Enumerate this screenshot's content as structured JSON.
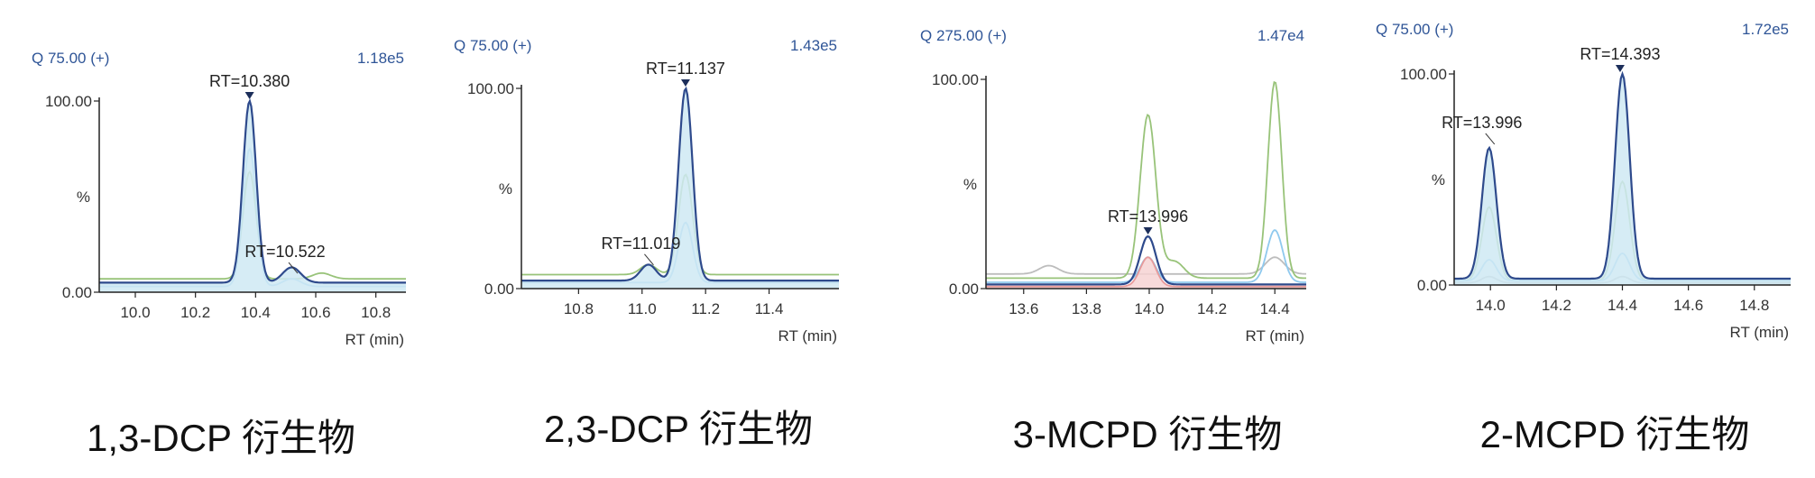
{
  "chart_data": [
    {
      "type": "line",
      "title": "1,3-DCP 衍生物",
      "channel": "Q 75.00 (+)",
      "scale": "1.18e5",
      "ylabel": "%",
      "xlabel": "RT (min)",
      "y_ticks": [
        "100.00",
        "0.00"
      ],
      "x_ticks": [
        "10.0",
        "10.2",
        "10.4",
        "10.6",
        "10.8"
      ],
      "xlim": [
        9.88,
        10.9
      ],
      "ylim": [
        0,
        100
      ],
      "annotations": [
        {
          "text": "RT=10.380",
          "x": 10.38,
          "y": 100,
          "marker": true
        },
        {
          "text": "RT=10.522",
          "x": 10.522,
          "y": 8
        }
      ],
      "series": [
        {
          "color": "#98c379",
          "baseline": 7,
          "peaks": [
            [
              10.38,
              56,
              0.022
            ],
            [
              10.62,
              3,
              0.03
            ]
          ]
        },
        {
          "color": "#8fc9ee",
          "baseline": 3,
          "peaks": [
            [
              10.38,
              72,
              0.022
            ],
            [
              10.52,
              4,
              0.03
            ]
          ]
        },
        {
          "color": "#2e4a8c",
          "fill": "#cfe9f3",
          "baseline": 5,
          "peaks": [
            [
              10.38,
              95,
              0.022
            ],
            [
              10.52,
              8,
              0.03
            ]
          ]
        }
      ]
    },
    {
      "type": "line",
      "title": "2,3-DCP 衍生物",
      "channel": "Q 75.00 (+)",
      "scale": "1.43e5",
      "ylabel": "%",
      "xlabel": "RT (min)",
      "y_ticks": [
        "100.00",
        "0.00"
      ],
      "x_ticks": [
        "10.8",
        "11.0",
        "11.2",
        "11.4"
      ],
      "xlim": [
        10.62,
        11.62
      ],
      "ylim": [
        0,
        100
      ],
      "annotations": [
        {
          "text": "RT=11.137",
          "x": 11.137,
          "y": 100,
          "marker": true
        },
        {
          "text": "RT=11.019",
          "x": 11.019,
          "y": 10
        }
      ],
      "series": [
        {
          "color": "#98c379",
          "baseline": 7,
          "peaks": [
            [
              11.137,
              50,
              0.022
            ],
            [
              11.02,
              5,
              0.025
            ]
          ]
        },
        {
          "color": "#8fc9ee",
          "baseline": 3,
          "peaks": [
            [
              11.137,
              30,
              0.022
            ]
          ]
        },
        {
          "color": "#2e4a8c",
          "fill": "#cfe9f3",
          "baseline": 4,
          "peaks": [
            [
              11.137,
              96,
              0.022
            ],
            [
              11.02,
              8,
              0.025
            ]
          ]
        }
      ]
    },
    {
      "type": "line",
      "title": "3-MCPD 衍生物",
      "channel": "Q 275.00 (+)",
      "scale": "1.47e4",
      "ylabel": "%",
      "xlabel": "RT (min)",
      "y_ticks": [
        "100.00",
        "0.00"
      ],
      "x_ticks": [
        "13.6",
        "13.8",
        "14.0",
        "14.2",
        "14.4"
      ],
      "xlim": [
        13.48,
        14.5
      ],
      "ylim": [
        0,
        100
      ],
      "annotations": [
        {
          "text": "RT=13.996",
          "x": 13.996,
          "y": 25,
          "marker": true
        }
      ],
      "series": [
        {
          "color": "#bdbdbd",
          "baseline": 7,
          "peaks": [
            [
              13.68,
              4,
              0.03
            ],
            [
              14.4,
              8,
              0.03
            ]
          ]
        },
        {
          "color": "#98c379",
          "baseline": 5,
          "peaks": [
            [
              13.996,
              78,
              0.025
            ],
            [
              14.08,
              8,
              0.03
            ],
            [
              14.4,
              94,
              0.022
            ]
          ]
        },
        {
          "color": "#8fc9ee",
          "baseline": 3,
          "peaks": [
            [
              13.996,
              12,
              0.025
            ],
            [
              14.4,
              25,
              0.025
            ]
          ]
        },
        {
          "color": "#e89a9a",
          "fill": "#f6d4d4",
          "baseline": 1,
          "peaks": [
            [
              13.996,
              14,
              0.025
            ]
          ]
        },
        {
          "color": "#2e4a8c",
          "baseline": 2,
          "peaks": [
            [
              13.996,
              23,
              0.025
            ]
          ]
        }
      ]
    },
    {
      "type": "line",
      "title": "2-MCPD  衍生物",
      "channel": "Q 75.00 (+)",
      "scale": "1.72e5",
      "ylabel": "%",
      "xlabel": "RT (min)",
      "y_ticks": [
        "100.00",
        "0.00"
      ],
      "x_ticks": [
        "14.0",
        "14.2",
        "14.4",
        "14.6",
        "14.8"
      ],
      "xlim": [
        13.89,
        14.91
      ],
      "ylim": [
        0,
        100
      ],
      "annotations": [
        {
          "text": "RT=14.393",
          "x": 14.393,
          "y": 100,
          "marker": true
        },
        {
          "text": "RT=13.996",
          "x": 13.996,
          "y": 65
        }
      ],
      "series": [
        {
          "color": "#bdbdbd",
          "baseline": 1,
          "peaks": [
            [
              13.996,
              3,
              0.022
            ],
            [
              14.4,
              3,
              0.022
            ]
          ]
        },
        {
          "color": "#98c379",
          "baseline": 2,
          "peaks": [
            [
              13.996,
              35,
              0.022
            ],
            [
              14.4,
              47,
              0.022
            ]
          ]
        },
        {
          "color": "#8fc9ee",
          "baseline": 2,
          "peaks": [
            [
              13.996,
              10,
              0.022
            ],
            [
              14.4,
              13,
              0.022
            ]
          ]
        },
        {
          "color": "#2e4a8c",
          "fill": "#cfe9f3",
          "baseline": 3,
          "peaks": [
            [
              13.996,
              62,
              0.022
            ],
            [
              14.4,
              97,
              0.022
            ]
          ]
        }
      ]
    }
  ]
}
